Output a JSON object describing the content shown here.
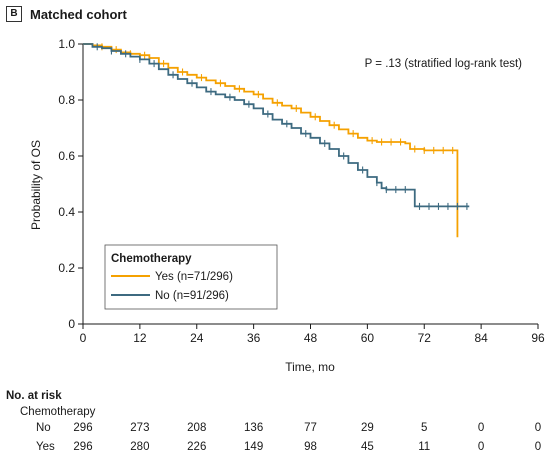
{
  "panel": {
    "letter": "B",
    "title": "Matched cohort"
  },
  "chart_data": {
    "type": "line",
    "annotation": "P = .13 (stratified log-rank test)",
    "xlabel": "Time, mo",
    "ylabel": "Probability of OS",
    "xlim": [
      0,
      96
    ],
    "ylim": [
      0,
      1.0
    ],
    "xticks": [
      0,
      12,
      24,
      36,
      48,
      60,
      72,
      84,
      96
    ],
    "yticks": [
      0,
      0.2,
      0.4,
      0.6,
      0.8,
      1.0
    ],
    "ytick_labels": [
      "0",
      "0.2",
      "0.4",
      "0.6",
      "0.8",
      "1.0"
    ],
    "grid": false,
    "legend": {
      "title": "Chemotherapy",
      "placement": "bottom-left"
    },
    "series": [
      {
        "name": "Yes (n=71/296)",
        "color": "#f5a100",
        "points": [
          [
            0,
            1.0
          ],
          [
            2,
            0.995
          ],
          [
            4,
            0.99
          ],
          [
            6,
            0.98
          ],
          [
            8,
            0.97
          ],
          [
            10,
            0.965
          ],
          [
            12,
            0.96
          ],
          [
            14,
            0.95
          ],
          [
            16,
            0.93
          ],
          [
            18,
            0.915
          ],
          [
            20,
            0.9
          ],
          [
            22,
            0.89
          ],
          [
            24,
            0.88
          ],
          [
            26,
            0.87
          ],
          [
            28,
            0.86
          ],
          [
            30,
            0.85
          ],
          [
            32,
            0.84
          ],
          [
            34,
            0.83
          ],
          [
            36,
            0.82
          ],
          [
            38,
            0.805
          ],
          [
            40,
            0.79
          ],
          [
            42,
            0.78
          ],
          [
            44,
            0.77
          ],
          [
            46,
            0.755
          ],
          [
            48,
            0.74
          ],
          [
            50,
            0.725
          ],
          [
            52,
            0.71
          ],
          [
            54,
            0.695
          ],
          [
            56,
            0.68
          ],
          [
            58,
            0.665
          ],
          [
            60,
            0.655
          ],
          [
            62,
            0.65
          ],
          [
            64,
            0.65
          ],
          [
            66,
            0.65
          ],
          [
            68,
            0.645
          ],
          [
            69,
            0.625
          ],
          [
            72,
            0.62
          ],
          [
            75,
            0.62
          ],
          [
            78,
            0.62
          ],
          [
            79,
            0.31
          ]
        ],
        "censor_x": [
          4,
          7,
          10,
          13,
          17,
          21,
          25,
          29,
          33,
          37,
          41,
          45,
          49,
          53,
          57,
          61,
          63,
          65,
          67,
          70,
          72,
          74,
          76,
          78
        ]
      },
      {
        "name": "No (n=91/296)",
        "color": "#3d6a80",
        "points": [
          [
            0,
            1.0
          ],
          [
            2,
            0.99
          ],
          [
            4,
            0.985
          ],
          [
            6,
            0.975
          ],
          [
            8,
            0.965
          ],
          [
            10,
            0.955
          ],
          [
            12,
            0.945
          ],
          [
            14,
            0.93
          ],
          [
            16,
            0.91
          ],
          [
            18,
            0.89
          ],
          [
            20,
            0.875
          ],
          [
            22,
            0.86
          ],
          [
            24,
            0.845
          ],
          [
            26,
            0.83
          ],
          [
            28,
            0.82
          ],
          [
            30,
            0.81
          ],
          [
            32,
            0.8
          ],
          [
            34,
            0.785
          ],
          [
            36,
            0.77
          ],
          [
            38,
            0.75
          ],
          [
            40,
            0.73
          ],
          [
            42,
            0.715
          ],
          [
            44,
            0.7
          ],
          [
            46,
            0.68
          ],
          [
            48,
            0.665
          ],
          [
            50,
            0.645
          ],
          [
            52,
            0.625
          ],
          [
            54,
            0.6
          ],
          [
            56,
            0.575
          ],
          [
            58,
            0.55
          ],
          [
            60,
            0.525
          ],
          [
            62,
            0.505
          ],
          [
            63,
            0.485
          ],
          [
            64,
            0.48
          ],
          [
            66,
            0.48
          ],
          [
            68,
            0.48
          ],
          [
            70,
            0.42
          ],
          [
            72,
            0.42
          ],
          [
            76,
            0.42
          ],
          [
            80,
            0.42
          ],
          [
            81.5,
            0.42
          ]
        ],
        "censor_x": [
          3,
          6,
          9,
          12,
          15,
          19,
          23,
          27,
          31,
          35,
          39,
          43,
          47,
          51,
          55,
          59,
          62,
          64,
          66,
          68,
          71,
          73,
          75,
          77,
          79,
          81
        ]
      }
    ],
    "risk_table": {
      "header": "No. at risk",
      "group_label": "Chemotherapy",
      "timepoints": [
        0,
        12,
        24,
        36,
        48,
        60,
        72,
        84,
        96
      ],
      "rows": [
        {
          "label": "No",
          "values": [
            "296",
            "273",
            "208",
            "136",
            "77",
            "29",
            "5",
            "0",
            "0"
          ]
        },
        {
          "label": "Yes",
          "values": [
            "296",
            "280",
            "226",
            "149",
            "98",
            "45",
            "11",
            "0",
            "0"
          ]
        }
      ]
    }
  }
}
